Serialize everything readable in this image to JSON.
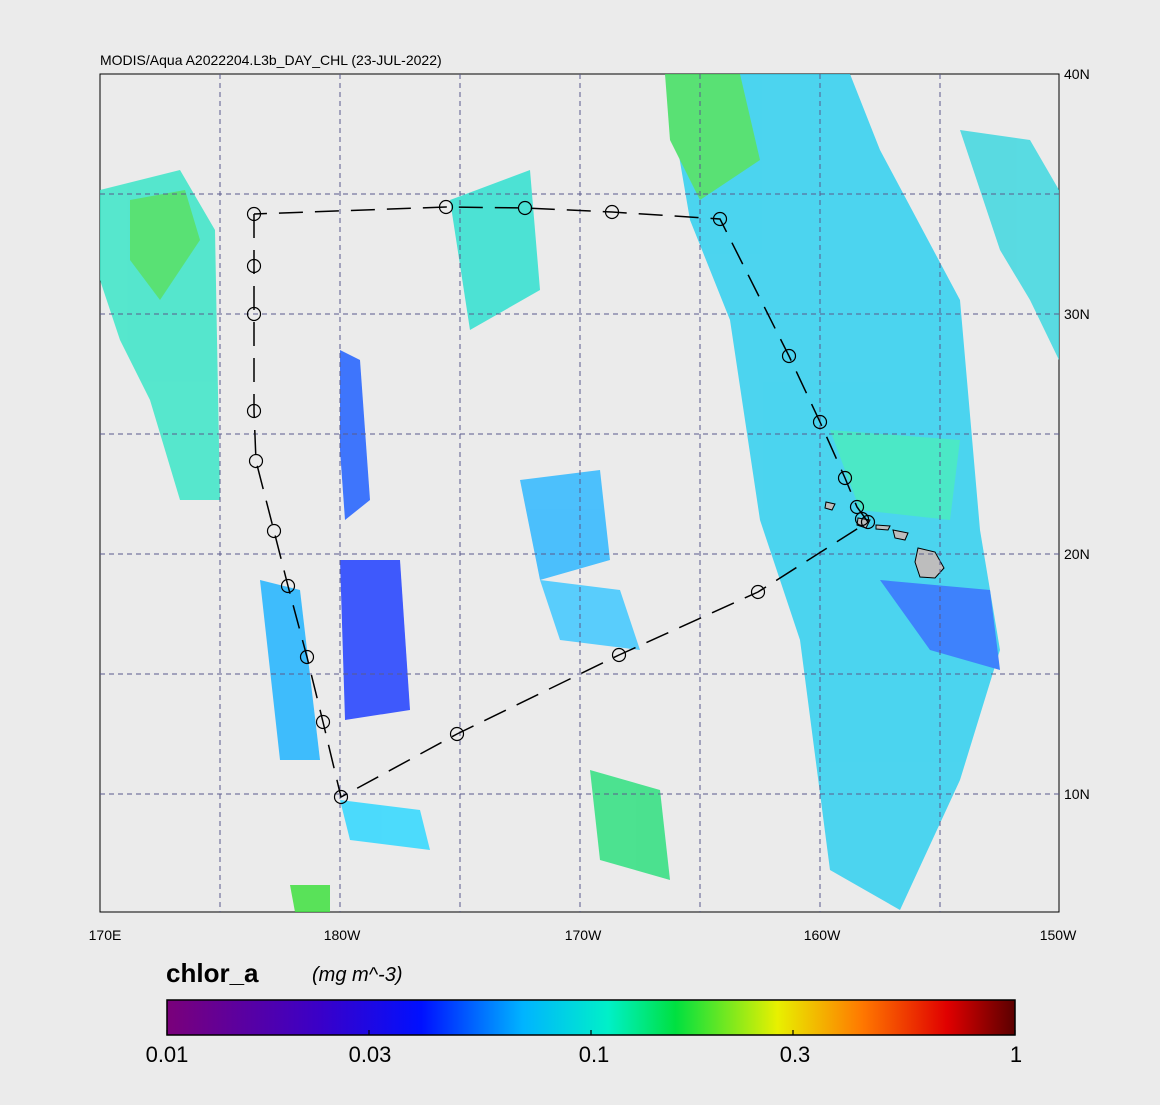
{
  "title": "MODIS/Aqua A2022204.L3b_DAY_CHL (23-JUL-2022)",
  "map": {
    "lon_ticks": [
      "170E",
      "180W",
      "170W",
      "160W",
      "150W"
    ],
    "lat_ticks": [
      "40N",
      "30N",
      "20N",
      "10N"
    ],
    "background_color": "#ebebeb",
    "land_color": "#bdbdbd",
    "grid_color": "#5a5a8c"
  },
  "colorbar": {
    "name": "chlor_a",
    "units": "(mg m^-3)",
    "tick_labels": [
      "0.01",
      "0.03",
      "0.1",
      "0.3",
      "1"
    ],
    "colors": [
      "#7a007a",
      "#2800ff",
      "#00c8ff",
      "#00f040",
      "#f0f000",
      "#ff6000",
      "#b00000",
      "#5a0000"
    ]
  },
  "cruise_track": {
    "style": "dashed line with circle station markers",
    "stations": 22
  }
}
